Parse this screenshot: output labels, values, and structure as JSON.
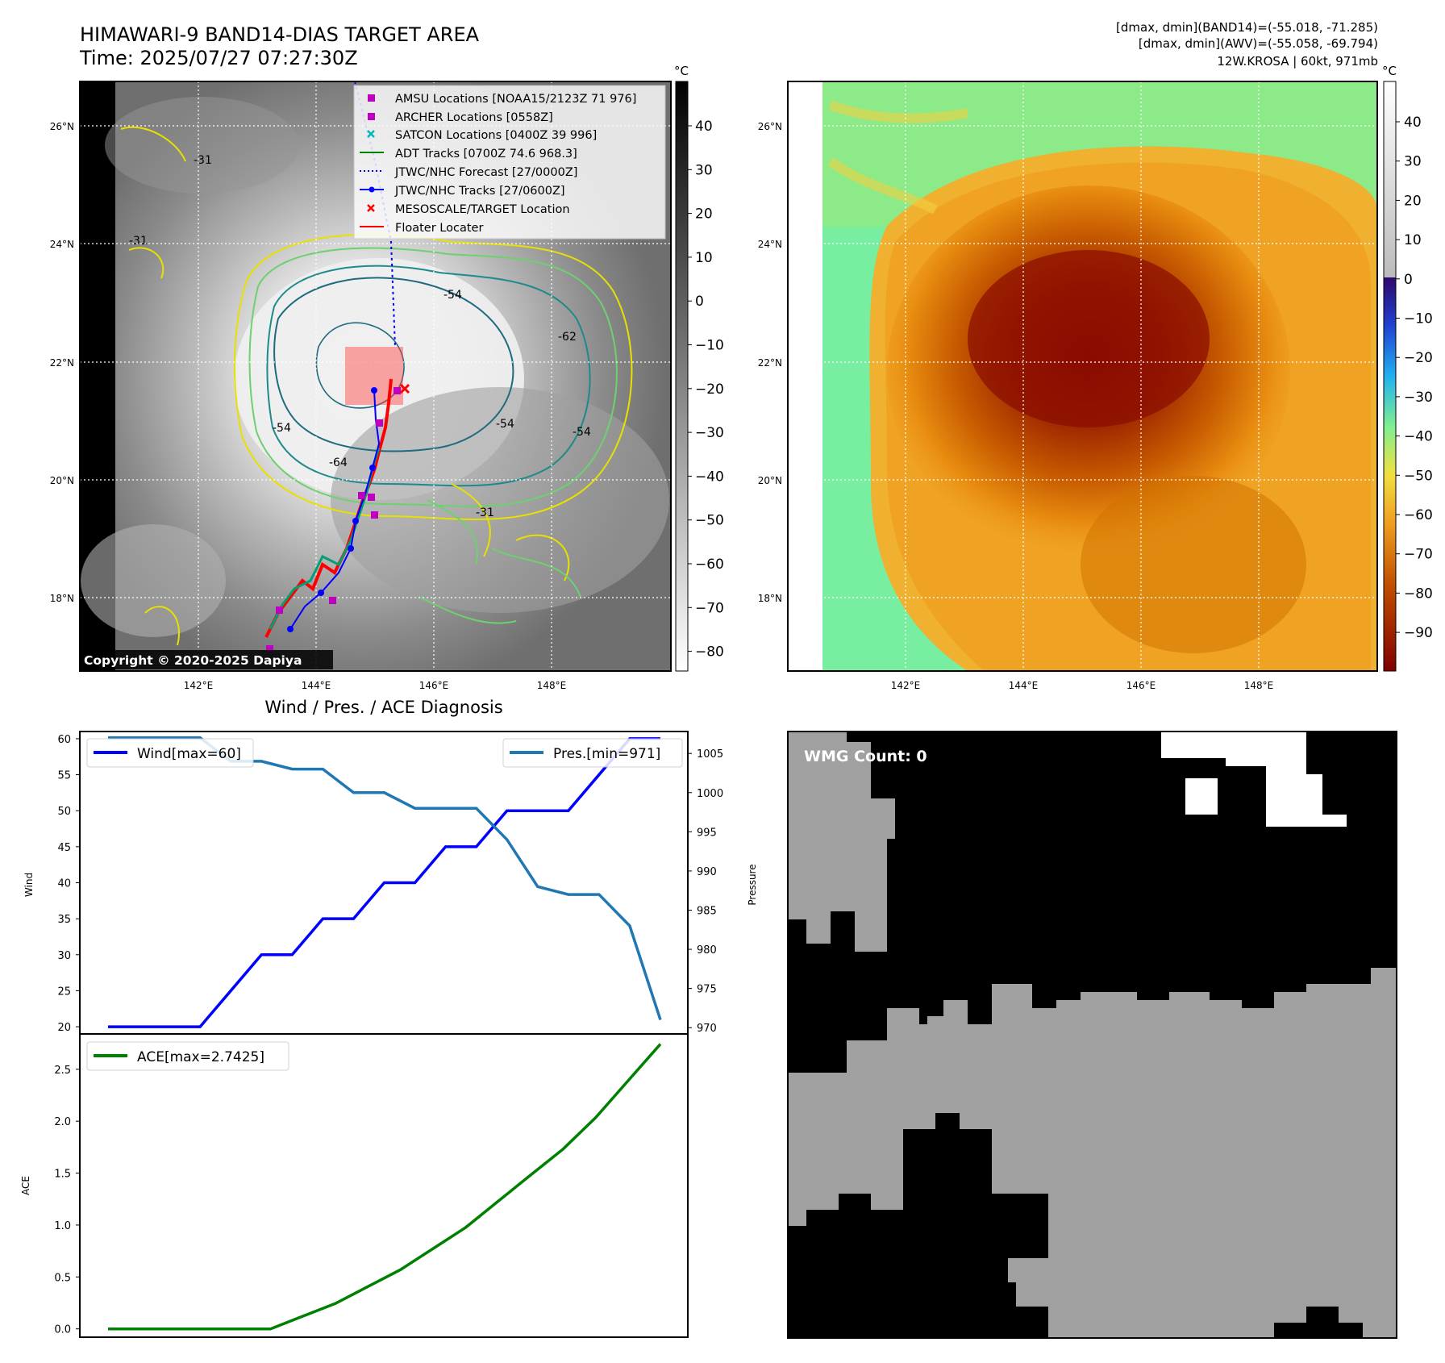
{
  "header": {
    "title_line1": "HIMAWARI-9 BAND14-DIAS TARGET AREA",
    "title_line2": "Time: 2025/07/27 07:27:30Z",
    "right_line1": "[dmax, dmin](BAND14)=(-55.018, -71.285)",
    "right_line2": "[dmax, dmin](AWV)=(-55.058, -69.794)",
    "right_line3": "12W.KROSA | 60kt, 971mb"
  },
  "map": {
    "lat_labels": [
      "26°N",
      "24°N",
      "22°N",
      "20°N",
      "18°N"
    ],
    "lon_labels": [
      "142°E",
      "144°E",
      "146°E",
      "148°E"
    ],
    "copyright": "Copyright © 2020-2025 Dapiya",
    "contour_labels": [
      "-31",
      "-31",
      "-54",
      "-54",
      "-64",
      "-54",
      "-62",
      "-31",
      "-54"
    ],
    "legend": [
      {
        "label": "AMSU Locations [NOAA15/2123Z 71 976]",
        "marker": "square",
        "color": "#c000c0"
      },
      {
        "label": "ARCHER Locations [0558Z]",
        "marker": "square",
        "color": "#c000c0"
      },
      {
        "label": "SATCON Locations [0400Z 39 996]",
        "marker": "x",
        "color": "#00b8b8"
      },
      {
        "label": "ADT Tracks [0700Z 74.6 968.3]",
        "marker": "line",
        "color": "#008000"
      },
      {
        "label": "JTWC/NHC Forecast [27/0000Z]",
        "marker": "dotted",
        "color": "#0000ff"
      },
      {
        "label": "JTWC/NHC Tracks [27/0600Z]",
        "marker": "line-dot",
        "color": "#0000ff"
      },
      {
        "label": "MESOSCALE/TARGET Location",
        "marker": "x",
        "color": "#ff0000"
      },
      {
        "label": "Floater Locater",
        "marker": "line",
        "color": "#ff0000"
      }
    ]
  },
  "colorbar_left": {
    "unit": "°C",
    "ticks": [
      "40",
      "30",
      "20",
      "10",
      "0",
      "−10",
      "−20",
      "−30",
      "−40",
      "−50",
      "−60",
      "−70",
      "−80"
    ]
  },
  "colorbar_right": {
    "unit": "°C",
    "ticks": [
      "40",
      "30",
      "20",
      "10",
      "0",
      "−10",
      "−20",
      "−30",
      "−40",
      "−50",
      "−60",
      "−70",
      "−80",
      "−90"
    ]
  },
  "wmg": {
    "label": "WMG Count: 0"
  },
  "chart_data": [
    {
      "type": "line",
      "title": "Wind / Pres. / ACE Diagnosis",
      "ylabel": "Wind",
      "ylabel_right": "Pressure",
      "ylim": [
        19,
        61
      ],
      "ylim_right": [
        969.2,
        1007.8
      ],
      "yticks": [
        "60",
        "55",
        "50",
        "45",
        "40",
        "35",
        "30",
        "25",
        "20"
      ],
      "yticks_right": [
        "1005",
        "1000",
        "995",
        "990",
        "985",
        "980",
        "975",
        "970"
      ],
      "legend_wind": "Wind[max=60]",
      "legend_pres": "Pres.[min=971]",
      "series": [
        {
          "name": "Wind[max=60]",
          "axis": "left",
          "color": "#0000ff",
          "values": [
            20,
            20,
            20,
            20,
            25,
            30,
            30,
            35,
            35,
            40,
            40,
            45,
            45,
            50,
            50,
            50,
            55,
            60,
            60
          ]
        },
        {
          "name": "Pres.[min=971]",
          "axis": "right",
          "color": "#1f77b4",
          "values": [
            1007,
            1007,
            1007,
            1007,
            1004,
            1004,
            1003,
            1003,
            1000,
            1000,
            998,
            998,
            998,
            994,
            988,
            987,
            987,
            983,
            971
          ]
        }
      ]
    },
    {
      "type": "line",
      "ylabel": "ACE",
      "ylim": [
        -0.08,
        2.84
      ],
      "yticks": [
        "2.5",
        "2.0",
        "1.5",
        "1.0",
        "0.5",
        "0.0"
      ],
      "legend_ace": "ACE[max=2.7425]",
      "series": [
        {
          "name": "ACE[max=2.7425]",
          "color": "#008000",
          "values": [
            0,
            0,
            0,
            0,
            0,
            0,
            0.1225,
            0.245,
            0.4075,
            0.57,
            0.7725,
            0.975,
            1.2275,
            1.48,
            1.73,
            2.0325,
            2.3875,
            2.7425
          ]
        }
      ]
    }
  ]
}
